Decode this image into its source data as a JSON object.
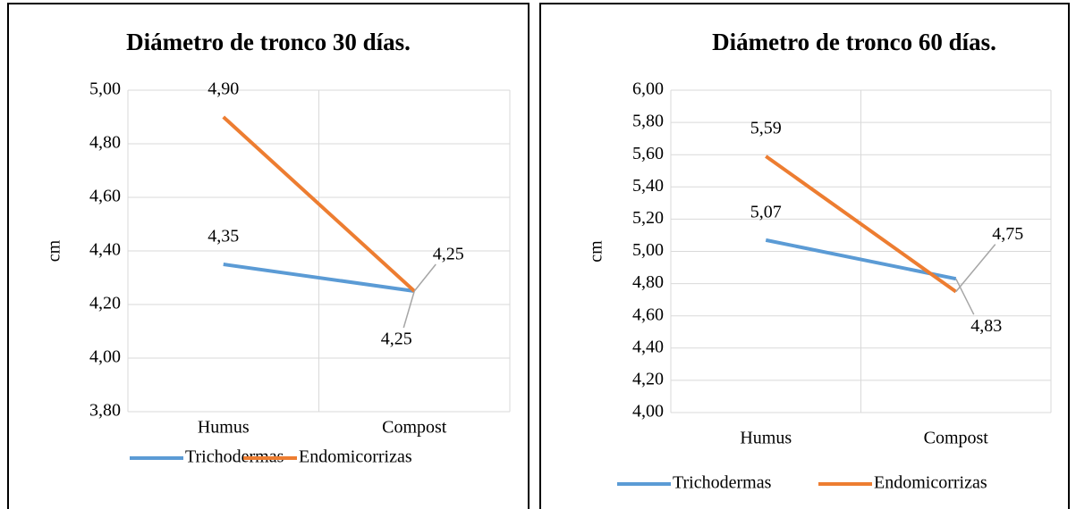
{
  "chart_data": [
    {
      "type": "line",
      "title": "Diámetro de tronco 30 días.",
      "y_label": "cm",
      "categories": [
        "Humus",
        "Compost"
      ],
      "series": [
        {
          "name": "Trichodermas",
          "color": "#5b9bd5",
          "values": [
            4.35,
            4.25
          ],
          "value_labels": [
            "4,35",
            "4,25"
          ]
        },
        {
          "name": "Endomicorrizas",
          "color": "#ed7d31",
          "values": [
            4.9,
            4.25
          ],
          "value_labels": [
            "4,90",
            "4,25"
          ]
        }
      ],
      "ylim": [
        3.8,
        5.0
      ],
      "yticks": [
        {
          "value": 3.8,
          "label": "3,80"
        },
        {
          "value": 4.0,
          "label": "4,00"
        },
        {
          "value": 4.2,
          "label": "4,20"
        },
        {
          "value": 4.4,
          "label": "4,40"
        },
        {
          "value": 4.6,
          "label": "4,60"
        },
        {
          "value": 4.8,
          "label": "4,80"
        },
        {
          "value": 5.0,
          "label": "5,00"
        }
      ],
      "grid": true,
      "legend": "bottom"
    },
    {
      "type": "line",
      "title": "Diámetro de tronco 60 días.",
      "y_label": "cm",
      "categories": [
        "Humus",
        "Compost"
      ],
      "series": [
        {
          "name": "Trichodermas",
          "color": "#5b9bd5",
          "values": [
            5.07,
            4.83
          ],
          "value_labels": [
            "5,07",
            "4,83"
          ]
        },
        {
          "name": "Endomicorrizas",
          "color": "#ed7d31",
          "values": [
            5.59,
            4.75
          ],
          "value_labels": [
            "5,59",
            "4,75"
          ]
        }
      ],
      "ylim": [
        4.0,
        6.0
      ],
      "yticks": [
        {
          "value": 4.0,
          "label": "4,00"
        },
        {
          "value": 4.2,
          "label": "4,20"
        },
        {
          "value": 4.4,
          "label": "4,40"
        },
        {
          "value": 4.6,
          "label": "4,60"
        },
        {
          "value": 4.8,
          "label": "4,80"
        },
        {
          "value": 5.0,
          "label": "5,00"
        },
        {
          "value": 5.2,
          "label": "5,20"
        },
        {
          "value": 5.4,
          "label": "5,40"
        },
        {
          "value": 5.6,
          "label": "5,60"
        },
        {
          "value": 5.8,
          "label": "5,80"
        },
        {
          "value": 6.0,
          "label": "6,00"
        }
      ],
      "grid": true,
      "legend": "bottom"
    }
  ]
}
